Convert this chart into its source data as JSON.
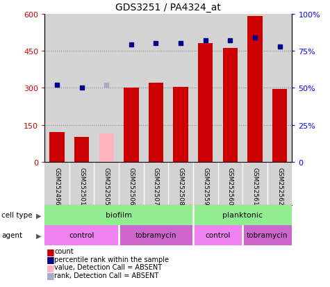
{
  "title": "GDS3251 / PA4324_at",
  "samples": [
    "GSM252496",
    "GSM252501",
    "GSM252505",
    "GSM252506",
    "GSM252507",
    "GSM252508",
    "GSM252559",
    "GSM252560",
    "GSM252561",
    "GSM252562"
  ],
  "counts": [
    120,
    100,
    null,
    300,
    320,
    305,
    480,
    460,
    590,
    295
  ],
  "absent_value": [
    null,
    null,
    115,
    null,
    null,
    null,
    null,
    null,
    null,
    null
  ],
  "percentile_vals_pct": [
    52,
    50,
    null,
    79,
    80,
    80,
    82,
    82,
    84,
    78
  ],
  "absent_rank_pct": [
    null,
    null,
    52,
    null,
    null,
    null,
    null,
    null,
    null,
    null
  ],
  "count_absent": [
    false,
    false,
    true,
    false,
    false,
    false,
    false,
    false,
    false,
    false
  ],
  "ylim_left": [
    0,
    600
  ],
  "ylim_right": [
    0,
    100
  ],
  "yticks_left": [
    0,
    150,
    300,
    450,
    600
  ],
  "ytick_labels_left": [
    "0",
    "150",
    "300",
    "450",
    "600"
  ],
  "yticks_right": [
    0,
    25,
    50,
    75,
    100
  ],
  "ytick_labels_right": [
    "0",
    "25%",
    "50%",
    "75%",
    "100%"
  ],
  "bar_color": "#CC0000",
  "bar_absent_color": "#FFB6C1",
  "dot_color": "#00008B",
  "dot_absent_color": "#AAAACC",
  "bg_color": "#D3D3D3",
  "grid_color": "#888888",
  "cell_type_color": "#90EE90",
  "agent_control_color": "#EE82EE",
  "agent_tobramycin_color": "#CC66CC",
  "legend_items": [
    {
      "color": "#CC0000",
      "label": "count"
    },
    {
      "color": "#00008B",
      "label": "percentile rank within the sample"
    },
    {
      "color": "#FFB6C1",
      "label": "value, Detection Call = ABSENT"
    },
    {
      "color": "#AAAACC",
      "label": "rank, Detection Call = ABSENT"
    }
  ]
}
